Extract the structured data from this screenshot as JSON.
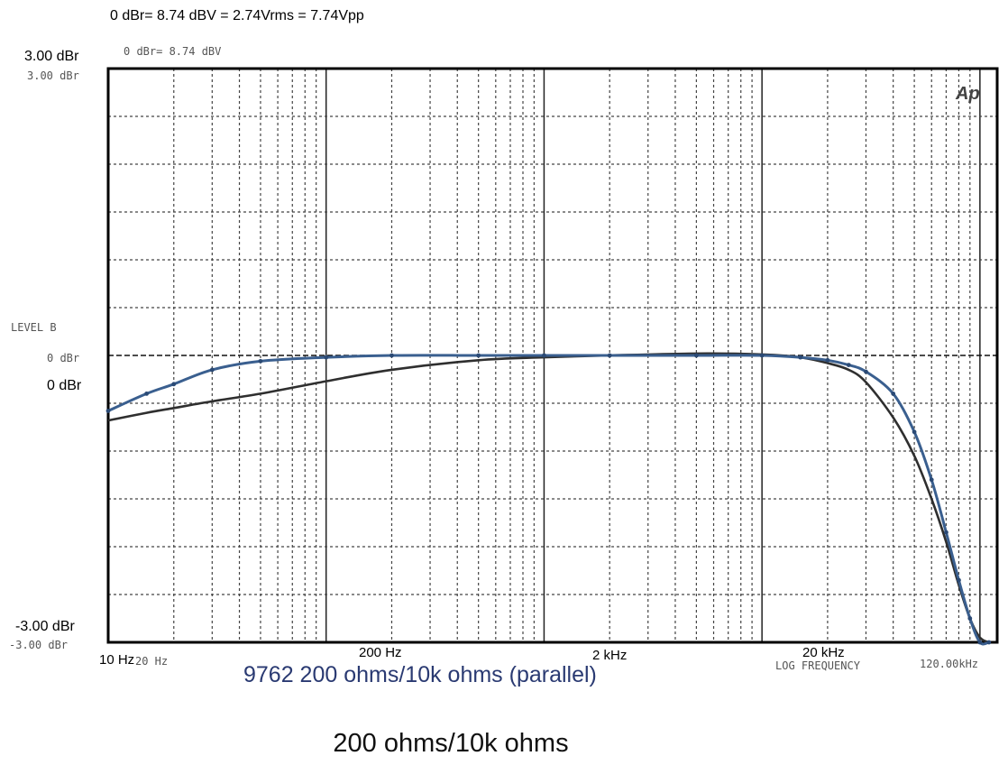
{
  "header_note": "0 dBr= 8.74 dBV = 2.74Vrms = 7.74Vpp",
  "caption": "200 ohms/10k ohms",
  "chart_data": {
    "type": "line",
    "title": "9762 200 ohms/10k ohms (parallel)",
    "logo": "Ap",
    "xlabel": "LOG FREQUENCY",
    "ylabel": "LEVEL B",
    "x_scale": "log",
    "xlim": [
      10,
      120000
    ],
    "ylim": [
      -3.0,
      3.0
    ],
    "grid": true,
    "tick_labels": {
      "y_annotations": [
        "3.00 dBr",
        "0 dBr",
        "-3.00 dBr"
      ],
      "y_original": [
        "3.00 dBr",
        "0 dBr",
        "-3.00 dBr"
      ],
      "y_reference": "0 dBr= 8.74 dBV",
      "x_annotations": [
        "10 Hz",
        "200 Hz",
        "2 kHz",
        "20 kHz"
      ],
      "x_original_left": "20 Hz",
      "x_original_right": "120.00kHz"
    },
    "series": [
      {
        "name": "",
        "color": "#2f2f2f",
        "x": [
          10,
          15,
          20,
          30,
          50,
          100,
          200,
          500,
          1000,
          2000,
          5000,
          10000,
          15000,
          20000,
          25000,
          30000,
          40000,
          50000,
          60000,
          70000,
          80000,
          90000,
          100000,
          110000
        ],
        "y": [
          -0.68,
          -0.6,
          -0.55,
          -0.48,
          -0.4,
          -0.27,
          -0.15,
          -0.05,
          -0.02,
          0.0,
          0.02,
          0.01,
          -0.02,
          -0.08,
          -0.15,
          -0.28,
          -0.65,
          -1.05,
          -1.5,
          -1.95,
          -2.4,
          -2.75,
          -2.95,
          -3.0
        ]
      },
      {
        "name": "",
        "color": "#3a5f8f",
        "x": [
          10,
          15,
          20,
          30,
          50,
          100,
          200,
          500,
          1000,
          2000,
          5000,
          10000,
          15000,
          20000,
          25000,
          30000,
          40000,
          50000,
          60000,
          70000,
          80000,
          90000,
          100000,
          110000
        ],
        "y": [
          -0.58,
          -0.4,
          -0.3,
          -0.15,
          -0.06,
          -0.02,
          0.0,
          0.0,
          0.0,
          0.0,
          0.0,
          0.0,
          -0.02,
          -0.05,
          -0.1,
          -0.17,
          -0.4,
          -0.8,
          -1.3,
          -1.85,
          -2.35,
          -2.75,
          -3.0,
          -3.0
        ]
      }
    ]
  }
}
